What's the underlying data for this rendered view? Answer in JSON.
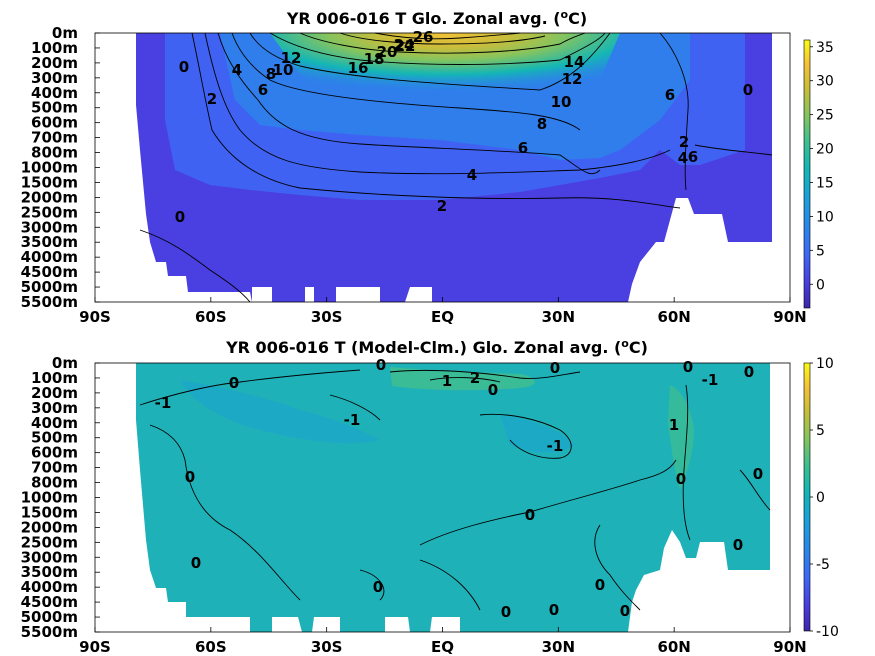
{
  "chart_data": [
    {
      "type": "heatmap",
      "title": "YR 006-016 T Glo. Zonal avg. (",
      "title_unit_sup": "o",
      "title_unit_tail": "C)",
      "x_ticks": [
        "90S",
        "60S",
        "30S",
        "EQ",
        "30N",
        "60N",
        "90N"
      ],
      "x_values": [
        -90,
        -60,
        -30,
        0,
        30,
        60,
        90
      ],
      "y_ticks": [
        "0m",
        "100m",
        "200m",
        "300m",
        "400m",
        "500m",
        "600m",
        "700m",
        "800m",
        "1000m",
        "1500m",
        "2000m",
        "2500m",
        "3000m",
        "3500m",
        "4000m",
        "4500m",
        "5000m",
        "5500m"
      ],
      "colorbar": {
        "min": -3.5,
        "max": 36,
        "ticks": [
          "0",
          "5",
          "10",
          "15",
          "20",
          "25",
          "30",
          "35"
        ],
        "tick_values": [
          0,
          5,
          10,
          15,
          20,
          25,
          30,
          35
        ]
      },
      "colormap": [
        "#3d26a8",
        "#4a3fe0",
        "#3e68f6",
        "#2a86e8",
        "#1da2d8",
        "#14b6b5",
        "#3fbf8f",
        "#86c45e",
        "#c8bd3c",
        "#f4c238",
        "#f9fb15"
      ],
      "contour_labels": [
        "0",
        "4",
        "2",
        "6",
        "8",
        "10",
        "12",
        "16",
        "18",
        "20",
        "22",
        "24",
        "26",
        "14",
        "12",
        "10",
        "8",
        "6",
        "4",
        "2",
        "0",
        "0",
        "6",
        "2",
        "4",
        "6"
      ],
      "grid": false
    },
    {
      "type": "heatmap",
      "title": "YR 006-016 T (Model-Clm.) Glo. Zonal avg. (",
      "title_unit_sup": "o",
      "title_unit_tail": "C)",
      "x_ticks": [
        "90S",
        "60S",
        "30S",
        "EQ",
        "30N",
        "60N",
        "90N"
      ],
      "x_values": [
        -90,
        -60,
        -30,
        0,
        30,
        60,
        90
      ],
      "y_ticks": [
        "0m",
        "100m",
        "200m",
        "300m",
        "400m",
        "500m",
        "600m",
        "700m",
        "800m",
        "1000m",
        "1500m",
        "2000m",
        "2500m",
        "3000m",
        "3500m",
        "4000m",
        "4500m",
        "5000m",
        "5500m"
      ],
      "colorbar": {
        "min": -10,
        "max": 10,
        "ticks": [
          "-10",
          "-5",
          "0",
          "5",
          "10"
        ],
        "tick_values": [
          -10,
          -5,
          0,
          5,
          10
        ]
      },
      "colormap": [
        "#3d26a8",
        "#4a3fe0",
        "#3e68f6",
        "#2a86e8",
        "#1da2d8",
        "#14b6b5",
        "#3fbf8f",
        "#86c45e",
        "#c8bd3c",
        "#f4c238",
        "#f9fb15"
      ],
      "contour_labels": [
        "0",
        "0",
        "0",
        "-1",
        "-1",
        "0",
        "1",
        "2",
        "0",
        "-1",
        "0",
        "-1",
        "0",
        "1",
        "0",
        "0",
        "0",
        "0",
        "0",
        "0",
        "0",
        "0",
        "0",
        "0"
      ],
      "grid": false
    }
  ]
}
